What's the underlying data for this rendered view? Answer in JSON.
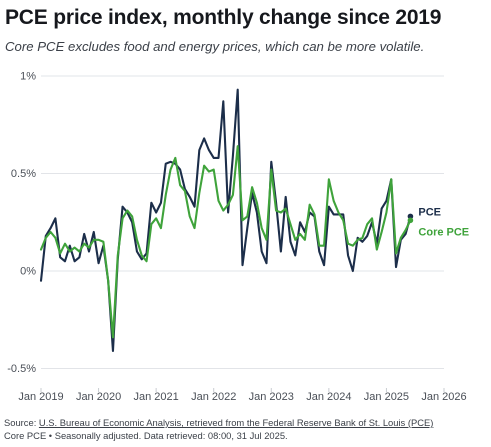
{
  "header": {
    "title": "PCE price index, monthly change since 2019",
    "subtitle": "Core PCE excludes food and energy prices, which can be more volatile."
  },
  "footer": {
    "source_prefix": "Source: ",
    "source_link": "U.S. Bureau of Economic Analysis, retrieved from the Federal Reserve Bank of St. Louis (PCE)",
    "line2": "Core PCE • Seasonally adjusted. Data retrieved: 08:00, 31 Jul 2025."
  },
  "colors": {
    "pce": "#1c2e4a",
    "core_pce": "#3fa33b",
    "grid": "#e2e4e8"
  },
  "chart_data": {
    "type": "line",
    "x_start": "2019-01",
    "frequency": "monthly",
    "xlim": [
      "2019-01",
      "2026-01"
    ],
    "x_ticks": [
      "Jan 2019",
      "Jan 2020",
      "Jan 2021",
      "Jan 2022",
      "Jan 2023",
      "Jan 2024",
      "Jan 2025",
      "Jan 2026"
    ],
    "ylim": [
      -0.6,
      1.0
    ],
    "y_ticks": [
      {
        "value": 1.0,
        "label": "1%"
      },
      {
        "value": 0.5,
        "label": "0.5%"
      },
      {
        "value": 0.0,
        "label": "0%"
      },
      {
        "value": -0.5,
        "label": "-0.5%"
      }
    ],
    "grid": true,
    "legend": "direct labels at line ends",
    "series": [
      {
        "name": "PCE",
        "color": "#1c2e4a",
        "values": [
          -0.05,
          0.18,
          0.22,
          0.27,
          0.07,
          0.05,
          0.13,
          0.05,
          0.07,
          0.19,
          0.1,
          0.2,
          0.04,
          0.13,
          -0.05,
          -0.41,
          0.06,
          0.33,
          0.3,
          0.25,
          0.1,
          0.06,
          0.09,
          0.35,
          0.3,
          0.35,
          0.55,
          0.56,
          0.55,
          0.52,
          0.42,
          0.38,
          0.33,
          0.62,
          0.68,
          0.62,
          0.58,
          0.58,
          0.87,
          0.3,
          0.59,
          0.93,
          0.03,
          0.22,
          0.4,
          0.3,
          0.1,
          0.04,
          0.56,
          0.35,
          0.1,
          0.38,
          0.15,
          0.08,
          0.25,
          0.2,
          0.3,
          0.28,
          0.1,
          0.03,
          0.33,
          0.29,
          0.29,
          0.29,
          0.08,
          0.0,
          0.17,
          0.15,
          0.18,
          0.25,
          0.14,
          0.32,
          0.36,
          0.47,
          0.02,
          0.16,
          0.19,
          0.28
        ]
      },
      {
        "name": "Core PCE",
        "color": "#3fa33b",
        "values": [
          0.11,
          0.17,
          0.2,
          0.17,
          0.09,
          0.14,
          0.1,
          0.12,
          0.1,
          0.14,
          0.12,
          0.16,
          0.16,
          0.15,
          -0.05,
          -0.34,
          0.08,
          0.27,
          0.31,
          0.28,
          0.16,
          0.08,
          0.05,
          0.24,
          0.27,
          0.22,
          0.39,
          0.52,
          0.58,
          0.44,
          0.41,
          0.28,
          0.22,
          0.4,
          0.54,
          0.51,
          0.52,
          0.36,
          0.31,
          0.34,
          0.39,
          0.64,
          0.26,
          0.28,
          0.43,
          0.35,
          0.22,
          0.16,
          0.52,
          0.31,
          0.3,
          0.32,
          0.24,
          0.16,
          0.19,
          0.16,
          0.34,
          0.29,
          0.13,
          0.13,
          0.47,
          0.36,
          0.3,
          0.26,
          0.14,
          0.13,
          0.16,
          0.17,
          0.24,
          0.27,
          0.11,
          0.2,
          0.3,
          0.47,
          0.09,
          0.17,
          0.21,
          0.26
        ]
      }
    ]
  }
}
